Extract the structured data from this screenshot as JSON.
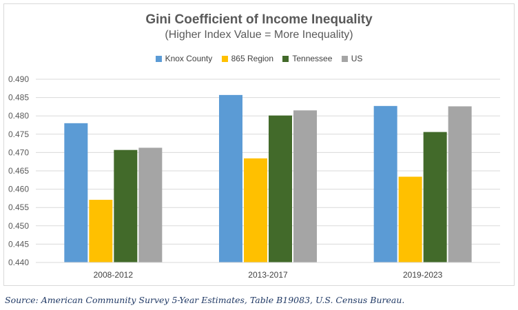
{
  "chart_data": {
    "type": "bar",
    "title": "Gini Coefficient of Income Inequality",
    "subtitle": "(Higher Index Value = More Inequality)",
    "categories": [
      "2008-2012",
      "2013-2017",
      "2019-2023"
    ],
    "series": [
      {
        "name": "Knox County",
        "color": "#5b9bd5",
        "values": [
          0.478,
          0.4857,
          0.4827
        ]
      },
      {
        "name": "865 Region",
        "color": "#ffc000",
        "values": [
          0.4571,
          0.4684,
          0.4634
        ]
      },
      {
        "name": "Tennessee",
        "color": "#426a2a",
        "values": [
          0.4707,
          0.4801,
          0.4756
        ]
      },
      {
        "name": "US",
        "color": "#a5a5a5",
        "values": [
          0.4713,
          0.4815,
          0.4826
        ]
      }
    ],
    "yticks": [
      "0.440",
      "0.445",
      "0.450",
      "0.455",
      "0.460",
      "0.465",
      "0.470",
      "0.475",
      "0.480",
      "0.485",
      "0.490"
    ],
    "ylim": [
      0.44,
      0.49
    ],
    "grid": true,
    "legend_position": "top"
  },
  "source": "Source: American Community Survey 5-Year Estimates, Table B19083, U.S. Census Bureau."
}
